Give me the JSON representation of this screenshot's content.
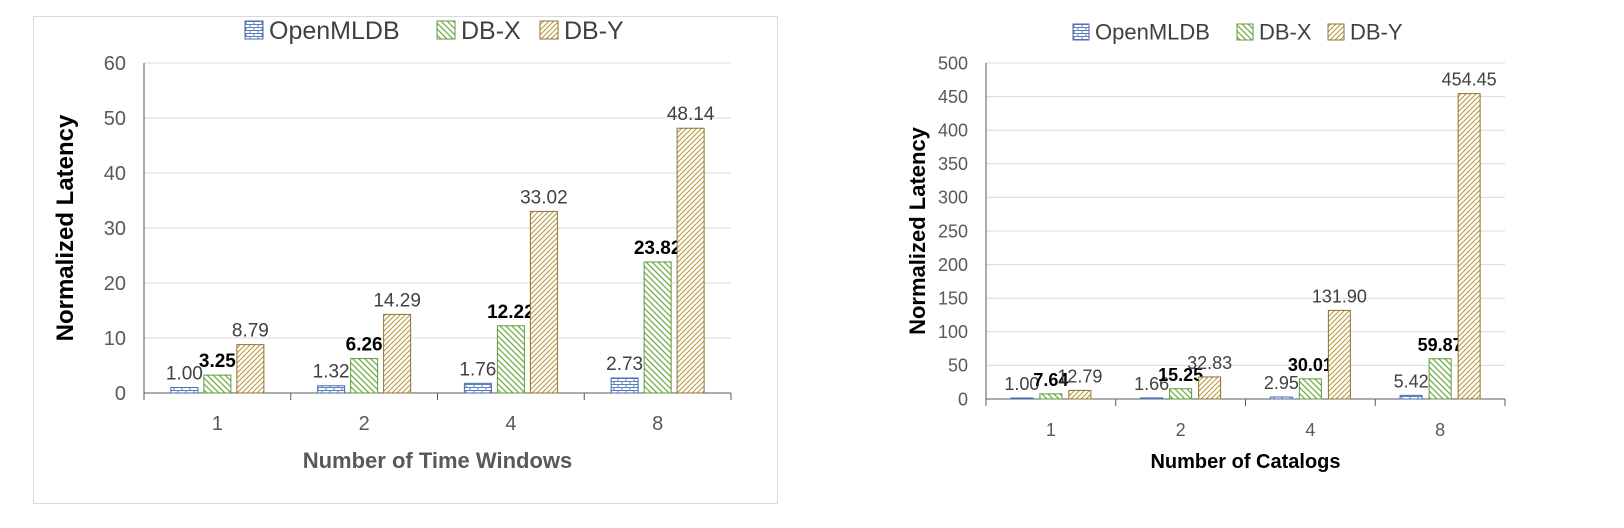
{
  "chart_data": [
    {
      "type": "bar",
      "title": "",
      "xlabel": "Number of Time Windows",
      "ylabel": "Normalized Latency",
      "categories": [
        "1",
        "2",
        "4",
        "8"
      ],
      "ylim": [
        0,
        60
      ],
      "yticks": [
        "0",
        "10",
        "20",
        "30",
        "40",
        "50",
        "60"
      ],
      "grid": true,
      "legend_position": "top",
      "series": [
        {
          "name": "OpenMLDB",
          "values": [
            1.0,
            1.32,
            1.76,
            2.73
          ],
          "labels": [
            "1.00",
            "1.32",
            "1.76",
            "2.73"
          ],
          "color": "#5b7fbf"
        },
        {
          "name": "DB-X",
          "values": [
            3.25,
            6.26,
            12.22,
            23.82
          ],
          "labels": [
            "3.25",
            "6.26",
            "12.22",
            "23.82"
          ],
          "color": "#70ad47"
        },
        {
          "name": "DB-Y",
          "values": [
            8.79,
            14.29,
            33.02,
            48.14
          ],
          "labels": [
            "8.79",
            "14.29",
            "33.02",
            "48.14"
          ],
          "color": "#b8963a"
        }
      ]
    },
    {
      "type": "bar",
      "title": "",
      "xlabel": "Number of Catalogs",
      "ylabel": "Normalized Latency",
      "categories": [
        "1",
        "2",
        "4",
        "8"
      ],
      "ylim": [
        0,
        500
      ],
      "yticks": [
        "0",
        "50",
        "100",
        "150",
        "200",
        "250",
        "300",
        "350",
        "400",
        "450",
        "500"
      ],
      "grid": true,
      "legend_position": "top",
      "series": [
        {
          "name": "OpenMLDB",
          "values": [
            1.0,
            1.66,
            2.95,
            5.42
          ],
          "labels": [
            "1.00",
            "1.66",
            "2.95",
            "5.42"
          ],
          "color": "#5b7fbf"
        },
        {
          "name": "DB-X",
          "values": [
            7.64,
            15.25,
            30.01,
            59.87
          ],
          "labels": [
            "7.64",
            "15.25",
            "30.01",
            "59.87"
          ],
          "color": "#70ad47"
        },
        {
          "name": "DB-Y",
          "values": [
            12.79,
            32.83,
            131.9,
            454.45
          ],
          "labels": [
            "12.79",
            "32.83",
            "131.90",
            "454.45"
          ],
          "color": "#b8963a"
        }
      ]
    }
  ]
}
